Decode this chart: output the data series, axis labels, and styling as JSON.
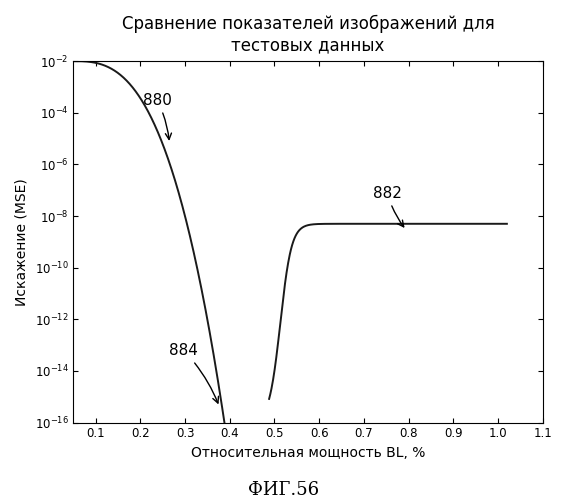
{
  "title": "Сравнение показателей изображений для\nтестовых данных",
  "xlabel": "Относительная мощность BL, %",
  "ylabel": "Искажение (MSE)",
  "caption": "ФИГ.56",
  "xlim": [
    0.05,
    1.1
  ],
  "ylim_log_min": -16,
  "ylim_log_max": -2,
  "label_880": "880",
  "label_882": "882",
  "label_884": "884",
  "line_color": "#1a1a1a",
  "bg_color": "#ffffff",
  "title_fontsize": 12,
  "axis_fontsize": 10,
  "caption_fontsize": 13,
  "annotation_fontsize": 11,
  "xticks": [
    0.1,
    0.2,
    0.3,
    0.4,
    0.5,
    0.6,
    0.7,
    0.8,
    0.9,
    1.0,
    1.1
  ],
  "yticks_exp": [
    -16,
    -14,
    -12,
    -10,
    -8,
    -6,
    -4,
    -2
  ]
}
